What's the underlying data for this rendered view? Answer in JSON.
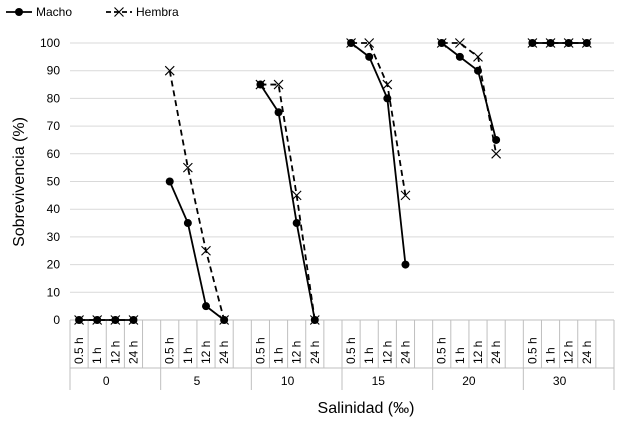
{
  "chart_data": {
    "type": "line",
    "xlabel": "Salinidad (‰)",
    "ylabel": "Sobrevivencia (%)",
    "ylim": [
      0,
      100
    ],
    "yticks": [
      0,
      10,
      20,
      30,
      40,
      50,
      60,
      70,
      80,
      90,
      100
    ],
    "grid": true,
    "legend_position": "top-left",
    "groups": [
      "0",
      "5",
      "10",
      "15",
      "20",
      "30"
    ],
    "times": [
      "0.5 h",
      "1 h",
      "12 h",
      "24 h"
    ],
    "series": [
      {
        "name": "Macho",
        "style": "solid",
        "marker": "circle",
        "color": "#000000",
        "values": [
          [
            0,
            0,
            0,
            0
          ],
          [
            50,
            35,
            5,
            0
          ],
          [
            85,
            75,
            35,
            0
          ],
          [
            100,
            95,
            80,
            20
          ],
          [
            100,
            95,
            90,
            65
          ],
          [
            100,
            100,
            100,
            100
          ]
        ]
      },
      {
        "name": "Hembra",
        "style": "dashed",
        "marker": "x",
        "color": "#000000",
        "values": [
          [
            0,
            0,
            0,
            0
          ],
          [
            90,
            55,
            25,
            0
          ],
          [
            85,
            85,
            45,
            0
          ],
          [
            100,
            100,
            85,
            45
          ],
          [
            100,
            100,
            95,
            60
          ],
          [
            100,
            100,
            100,
            100
          ]
        ]
      }
    ]
  }
}
